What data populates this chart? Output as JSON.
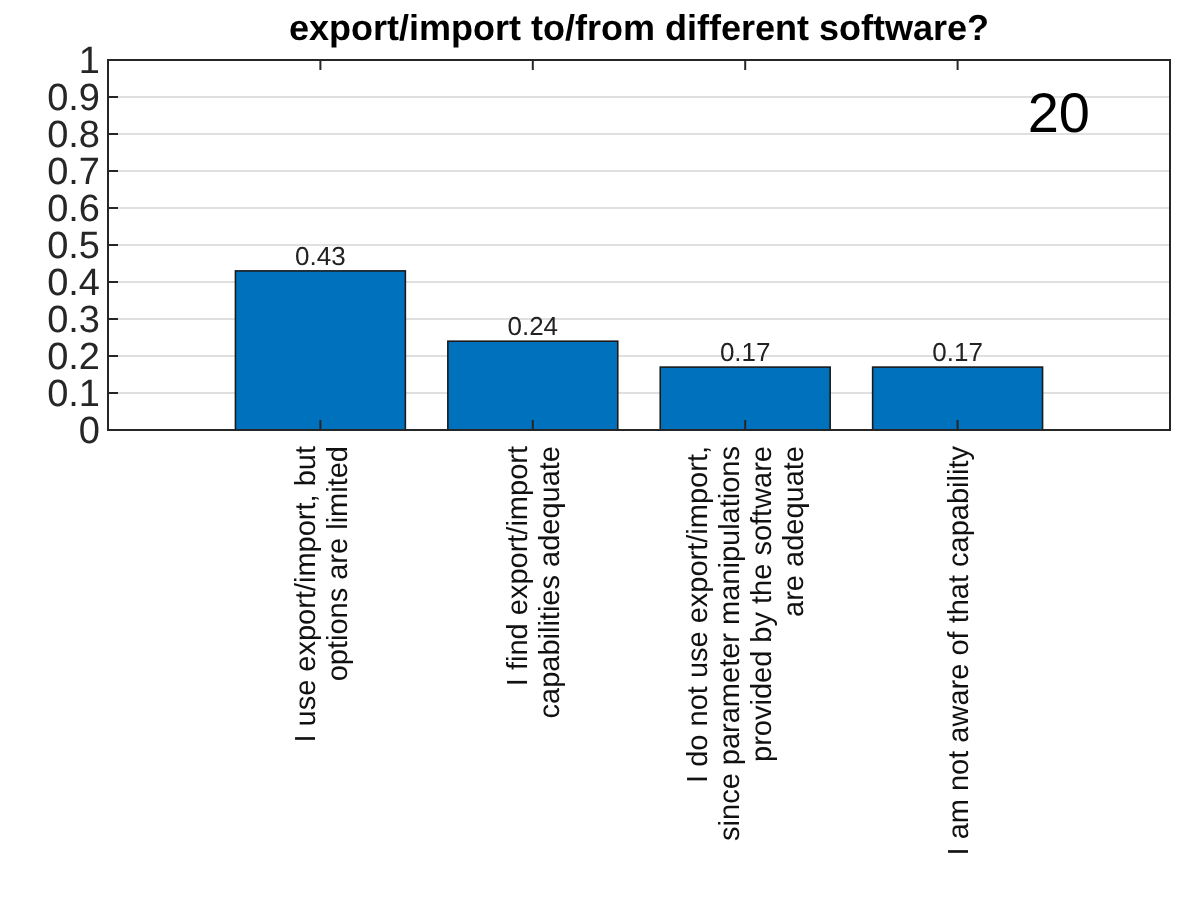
{
  "chart_data": {
    "type": "bar",
    "title": "export/import to/from different software?",
    "categories": [
      "I use export/import, but\noptions are limited",
      "I find export/import\ncapabilities adequate",
      "I do not use export/import,\nsince parameter manipulations\nprovided by the software\nare adequate",
      "I am not aware of that capability"
    ],
    "values": [
      0.43,
      0.24,
      0.17,
      0.17
    ],
    "color": "#0072bd",
    "data_labels": true,
    "ylim": [
      0,
      1
    ],
    "yticks": [
      0,
      0.1,
      0.2,
      0.3,
      0.4,
      0.5,
      0.6,
      0.7,
      0.8,
      0.9,
      1
    ],
    "grid": "y",
    "annotations": [
      "20"
    ]
  }
}
